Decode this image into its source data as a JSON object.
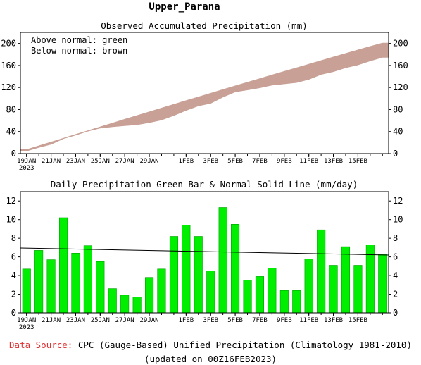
{
  "page_title": "Upper_Parana",
  "footer": {
    "source_label": "Data Source:",
    "source_text": "CPC (Gauge-Based) Unified Precipitation (Climatology 1981-2010)",
    "updated": "(updated on 00Z16FEB2023)"
  },
  "colors": {
    "above_fill": "#00e000",
    "below_fill": "#c8a096",
    "bar_fill": "#00ee00",
    "bar_edge": "#00a000",
    "source_label": "#e03030",
    "axis": "#000000"
  },
  "chart_data": [
    {
      "type": "area",
      "title": "Observed Accumulated Precipitation (mm)",
      "annotations": [
        "Above normal: green",
        "Below normal: brown"
      ],
      "x_tick_labels": [
        "19JAN",
        "21JAN",
        "23JAN",
        "25JAN",
        "27JAN",
        "29JAN",
        "1FEB",
        "3FEB",
        "5FEB",
        "7FEB",
        "9FEB",
        "11FEB",
        "13FEB",
        "15FEB"
      ],
      "x_sub_label": "2023",
      "y_ticks": [
        0,
        40,
        80,
        120,
        160,
        200
      ],
      "ylim": [
        0,
        220
      ],
      "grid": false,
      "series": [
        {
          "name": "Observed",
          "values": [
            4.7,
            11.4,
            17.1,
            27.3,
            33.7,
            40.9,
            46.4,
            49.0,
            50.9,
            52.6,
            56.4,
            61.1,
            69.3,
            78.7,
            86.9,
            91.4,
            102.7,
            112.2,
            115.7,
            119.6,
            124.4,
            126.8,
            129.2,
            135.0,
            143.9,
            149.0,
            156.1,
            161.2,
            168.5,
            174.8
          ]
        },
        {
          "name": "Normal",
          "values": [
            7.0,
            13.9,
            20.8,
            27.7,
            34.6,
            41.5,
            48.4,
            55.3,
            62.1,
            68.9,
            75.7,
            82.5,
            89.3,
            96.0,
            102.7,
            109.4,
            116.1,
            122.8,
            129.4,
            136.0,
            142.6,
            149.2,
            155.7,
            162.2,
            168.7,
            175.2,
            181.6,
            188.0,
            194.4,
            200.6
          ]
        }
      ]
    },
    {
      "type": "bar",
      "title": "Daily Precipitation-Green Bar & Normal-Solid Line (mm/day)",
      "x_tick_labels": [
        "19JAN",
        "21JAN",
        "23JAN",
        "25JAN",
        "27JAN",
        "29JAN",
        "1FEB",
        "3FEB",
        "5FEB",
        "7FEB",
        "9FEB",
        "11FEB",
        "13FEB",
        "15FEB"
      ],
      "x_sub_label": "2023",
      "y_ticks": [
        0,
        2,
        4,
        6,
        8,
        10,
        12
      ],
      "ylim": [
        0,
        13
      ],
      "grid": false,
      "values": [
        4.7,
        6.7,
        5.7,
        10.2,
        6.4,
        7.2,
        5.5,
        2.6,
        1.9,
        1.7,
        3.8,
        4.7,
        8.2,
        9.4,
        8.2,
        4.5,
        11.3,
        9.5,
        3.5,
        3.9,
        4.8,
        2.4,
        2.4,
        5.8,
        8.9,
        5.1,
        7.1,
        5.1,
        7.3,
        6.3
      ],
      "normal_line": [
        6.95,
        6.2
      ]
    }
  ]
}
